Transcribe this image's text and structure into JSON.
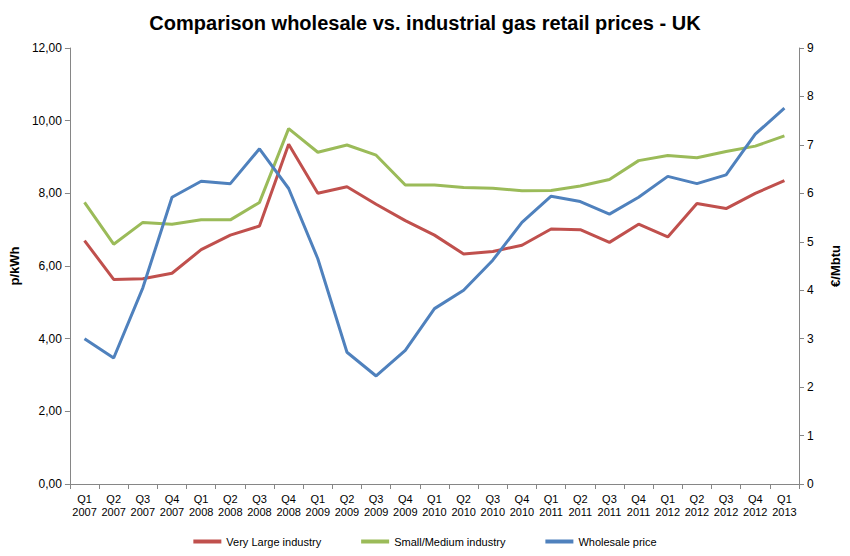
{
  "chart_data": {
    "type": "line",
    "title": "Comparison wholesale vs. industrial gas retail prices - UK",
    "y_label": "p/kWh",
    "y2_label": "€/Mbtu",
    "categories": [
      "Q1 2007",
      "Q2 2007",
      "Q3 2007",
      "Q4 2007",
      "Q1 2008",
      "Q2 2008",
      "Q3 2008",
      "Q4 2008",
      "Q1 2009",
      "Q2 2009",
      "Q3 2009",
      "Q4 2009",
      "Q1 2010",
      "Q2 2010",
      "Q3 2010",
      "Q4 2010",
      "Q1 2011",
      "Q2 2011",
      "Q3 2011",
      "Q4 2011",
      "Q1 2012",
      "Q2 2012",
      "Q3 2012",
      "Q4 2012",
      "Q1 2013"
    ],
    "series": [
      {
        "name": "Very Large industry",
        "color": "#c0504d",
        "values": [
          6.7,
          5.63,
          5.65,
          5.8,
          6.45,
          6.85,
          7.1,
          9.35,
          8.0,
          8.18,
          7.7,
          7.25,
          6.85,
          6.33,
          6.4,
          6.57,
          7.02,
          7.0,
          6.65,
          7.15,
          6.8,
          7.72,
          7.58,
          8.0,
          8.35
        ]
      },
      {
        "name": "Small/Medium industry",
        "color": "#9bbb59",
        "values": [
          7.75,
          6.6,
          7.2,
          7.15,
          7.27,
          7.27,
          7.75,
          9.78,
          9.13,
          9.33,
          9.05,
          8.23,
          8.23,
          8.16,
          8.14,
          8.07,
          8.08,
          8.2,
          8.38,
          8.9,
          9.04,
          8.98,
          9.15,
          9.3,
          9.58
        ]
      },
      {
        "name": "Wholesale price",
        "color": "#4f81bd",
        "axis": "y2",
        "values": [
          3.0,
          2.6,
          4.05,
          5.92,
          6.25,
          6.2,
          6.92,
          6.1,
          4.65,
          2.72,
          2.23,
          2.76,
          3.62,
          4.0,
          4.62,
          5.4,
          5.94,
          5.83,
          5.57,
          5.92,
          6.35,
          6.2,
          6.38,
          7.22,
          7.76
        ]
      }
    ],
    "ylim": [
      0,
      12
    ],
    "yticks": [
      {
        "value": 0,
        "label": "0,00"
      },
      {
        "value": 2,
        "label": "2,00"
      },
      {
        "value": 4,
        "label": "4,00"
      },
      {
        "value": 6,
        "label": "6,00"
      },
      {
        "value": 8,
        "label": "8,00"
      },
      {
        "value": 10,
        "label": "10,00"
      },
      {
        "value": 12,
        "label": "12,00"
      }
    ],
    "y2lim": [
      0,
      9
    ],
    "y2ticks": [
      0,
      1,
      2,
      3,
      4,
      5,
      6,
      7,
      8,
      9
    ],
    "grid": false,
    "legend": "bottom"
  }
}
